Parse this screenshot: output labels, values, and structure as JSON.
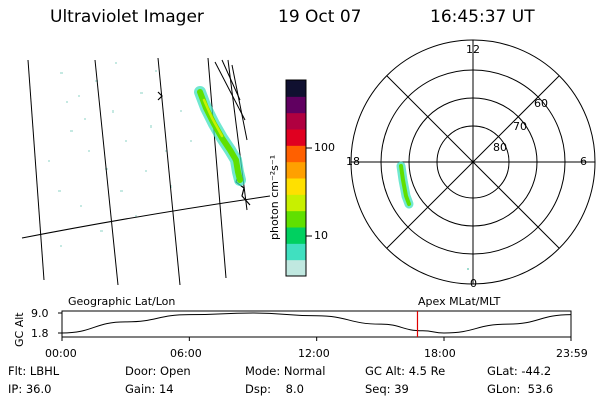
{
  "header": {
    "instrument": "Ultraviolet Imager",
    "date": "19 Oct 07",
    "time": "16:45:37 UT"
  },
  "colorbar": {
    "unit_label": "photon cm⁻²s⁻¹",
    "ticks": [
      "100",
      "10"
    ],
    "colors": [
      "#c0e8e0",
      "#40e0c0",
      "#00d060",
      "#60e000",
      "#c8f000",
      "#ffe000",
      "#ffa000",
      "#ff6000",
      "#e00020",
      "#b00040",
      "#600060",
      "#101030"
    ]
  },
  "polar_labels": {
    "mlt": [
      "12",
      "18",
      "6",
      "0"
    ],
    "mlat": [
      "60",
      "70",
      "80"
    ]
  },
  "timeline": {
    "left_title": "Geographic Lat/Lon",
    "right_title": "Apex MLat/MLT",
    "axis_label": "GC Alt",
    "y_ticks": [
      "9.0",
      "1.8"
    ],
    "x_ticks": [
      "00:00",
      "06:00",
      "12:00",
      "18:00",
      "23:59"
    ],
    "marker_color": "#e00000"
  },
  "status": {
    "row1": [
      "Flt: LBHL",
      "Door: Open",
      "Mode: Normal",
      "GC Alt: 4.5 Re",
      "GLat: -44.2"
    ],
    "row2": [
      "IP: 36.0",
      "Gain: 14",
      "Dsp:    8.0",
      "Seq: 39",
      "GLon:  53.6"
    ]
  },
  "chart_data": {
    "type": "line",
    "title": "",
    "xlabel": "",
    "ylabel": "GC Alt",
    "x": [
      "00:00",
      "03:00",
      "06:00",
      "09:00",
      "12:00",
      "15:00",
      "17:00",
      "18:00",
      "21:00",
      "23:59"
    ],
    "values": [
      1.8,
      5.8,
      8.4,
      9.0,
      8.0,
      5.0,
      2.6,
      1.8,
      5.0,
      8.4
    ],
    "ylim": [
      1.8,
      9.0
    ],
    "current_time": "16:45",
    "current_value": 4.5,
    "grid": false
  }
}
